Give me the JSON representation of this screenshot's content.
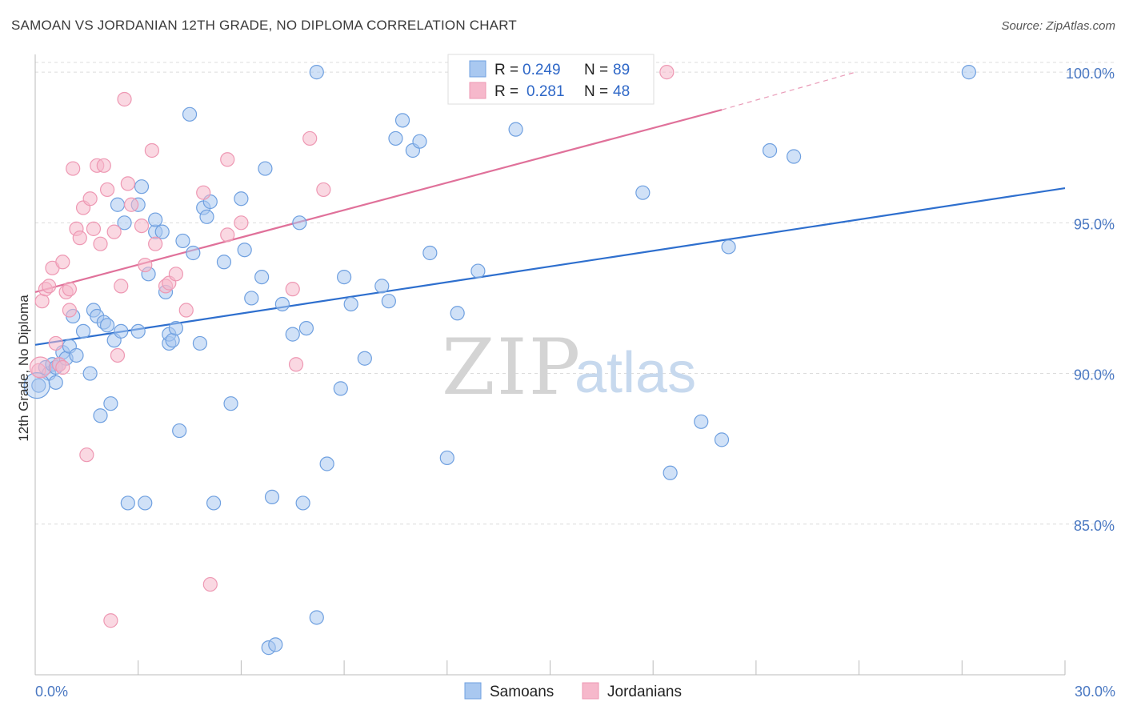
{
  "header": {
    "title": "SAMOAN VS JORDANIAN 12TH GRADE, NO DIPLOMA CORRELATION CHART",
    "source": "Source: ZipAtlas.com"
  },
  "watermark": {
    "zip": "ZIP",
    "atlas": "atlas"
  },
  "legend": {
    "r_label": "R =",
    "n_label": "N =",
    "rows": [
      {
        "r": "0.249",
        "n": "89",
        "color": "#a9c8f0"
      },
      {
        "r": "0.281",
        "n": "48",
        "color": "#f6b8cb"
      }
    ]
  },
  "bottom_legend": [
    "Samoans",
    "Jordanians"
  ],
  "chart_data": {
    "type": "scatter",
    "ylabel": "12th Grade, No Diploma",
    "xlabel": "",
    "xlim": [
      0,
      30
    ],
    "ylim": [
      80.0,
      100.8
    ],
    "x_tick_labels": [
      "0.0%",
      "30.0%"
    ],
    "y_ticks": [
      85,
      90,
      95,
      100
    ],
    "y_tick_labels": [
      "85.0%",
      "90.0%",
      "95.0%",
      "100.0%"
    ],
    "grid": "horizontal dashed",
    "legend_position": "top-center",
    "series": [
      {
        "name": "Samoans",
        "color": "#6fa0e0",
        "fill": "#a9c8f0",
        "line_color": "#2e6fce",
        "trend": {
          "x": [
            0,
            30
          ],
          "y": [
            90.95,
            96.15
          ]
        },
        "points": [
          [
            0.1,
            89.6
          ],
          [
            0.3,
            90.2
          ],
          [
            0.4,
            90.0
          ],
          [
            0.5,
            90.3
          ],
          [
            0.6,
            90.2
          ],
          [
            0.6,
            89.7
          ],
          [
            0.7,
            90.3
          ],
          [
            0.8,
            90.7
          ],
          [
            0.9,
            90.5
          ],
          [
            1.0,
            90.9
          ],
          [
            1.1,
            91.9
          ],
          [
            1.2,
            90.6
          ],
          [
            1.4,
            91.4
          ],
          [
            1.6,
            90.0
          ],
          [
            1.7,
            92.1
          ],
          [
            1.8,
            91.9
          ],
          [
            1.9,
            88.6
          ],
          [
            2.0,
            91.7
          ],
          [
            2.1,
            91.6
          ],
          [
            2.2,
            89.0
          ],
          [
            2.3,
            91.1
          ],
          [
            2.4,
            95.6
          ],
          [
            2.5,
            91.4
          ],
          [
            2.6,
            95.0
          ],
          [
            2.7,
            85.7
          ],
          [
            3.0,
            95.6
          ],
          [
            3.0,
            91.4
          ],
          [
            3.1,
            96.2
          ],
          [
            3.2,
            85.7
          ],
          [
            3.3,
            93.3
          ],
          [
            3.5,
            94.7
          ],
          [
            3.5,
            95.1
          ],
          [
            3.7,
            94.7
          ],
          [
            3.8,
            92.7
          ],
          [
            3.9,
            91.0
          ],
          [
            3.9,
            91.3
          ],
          [
            4.0,
            91.1
          ],
          [
            4.1,
            91.5
          ],
          [
            4.2,
            88.1
          ],
          [
            4.3,
            94.4
          ],
          [
            4.5,
            98.6
          ],
          [
            4.6,
            94.0
          ],
          [
            4.8,
            91.0
          ],
          [
            4.9,
            95.5
          ],
          [
            5.0,
            95.2
          ],
          [
            5.1,
            95.7
          ],
          [
            5.2,
            85.7
          ],
          [
            5.5,
            93.7
          ],
          [
            5.7,
            89.0
          ],
          [
            6.0,
            95.8
          ],
          [
            6.1,
            94.1
          ],
          [
            6.3,
            92.5
          ],
          [
            6.6,
            93.2
          ],
          [
            6.7,
            96.8
          ],
          [
            6.8,
            80.9
          ],
          [
            6.9,
            85.9
          ],
          [
            7.0,
            81.0
          ],
          [
            7.2,
            92.3
          ],
          [
            7.5,
            91.3
          ],
          [
            7.7,
            95.0
          ],
          [
            7.8,
            85.7
          ],
          [
            7.9,
            91.5
          ],
          [
            8.2,
            81.9
          ],
          [
            8.2,
            100.0
          ],
          [
            8.5,
            87.0
          ],
          [
            8.9,
            89.5
          ],
          [
            9.0,
            93.2
          ],
          [
            9.2,
            92.3
          ],
          [
            9.6,
            90.5
          ],
          [
            10.1,
            92.9
          ],
          [
            10.3,
            92.4
          ],
          [
            10.5,
            97.8
          ],
          [
            10.7,
            98.4
          ],
          [
            11.0,
            97.4
          ],
          [
            11.2,
            97.7
          ],
          [
            11.5,
            94.0
          ],
          [
            12.0,
            87.2
          ],
          [
            12.3,
            92.0
          ],
          [
            12.9,
            93.4
          ],
          [
            14.0,
            98.1
          ],
          [
            14.6,
            100.1
          ],
          [
            17.7,
            96.0
          ],
          [
            18.5,
            86.7
          ],
          [
            19.4,
            88.4
          ],
          [
            20.0,
            87.8
          ],
          [
            20.2,
            94.2
          ],
          [
            21.4,
            97.4
          ],
          [
            22.1,
            97.2
          ],
          [
            27.2,
            100.0
          ]
        ]
      },
      {
        "name": "Jordanians",
        "color": "#ee98b3",
        "fill": "#f6b8cb",
        "line_color": "#e0719a",
        "trend": {
          "x": [
            0,
            20.0,
            23.9
          ],
          "y": [
            92.7,
            98.75,
            100.0
          ]
        },
        "points": [
          [
            0.1,
            90.1
          ],
          [
            0.2,
            92.4
          ],
          [
            0.3,
            92.8
          ],
          [
            0.4,
            92.9
          ],
          [
            0.5,
            93.5
          ],
          [
            0.6,
            91.0
          ],
          [
            0.7,
            90.3
          ],
          [
            0.8,
            90.2
          ],
          [
            0.8,
            93.7
          ],
          [
            0.9,
            92.7
          ],
          [
            1.0,
            92.1
          ],
          [
            1.0,
            92.8
          ],
          [
            1.1,
            96.8
          ],
          [
            1.2,
            94.8
          ],
          [
            1.3,
            94.5
          ],
          [
            1.4,
            95.5
          ],
          [
            1.5,
            87.3
          ],
          [
            1.6,
            95.8
          ],
          [
            1.7,
            94.8
          ],
          [
            1.8,
            96.9
          ],
          [
            1.9,
            94.3
          ],
          [
            2.0,
            96.9
          ],
          [
            2.1,
            96.1
          ],
          [
            2.2,
            81.8
          ],
          [
            2.3,
            94.7
          ],
          [
            2.4,
            90.6
          ],
          [
            2.5,
            92.9
          ],
          [
            2.6,
            99.1
          ],
          [
            2.7,
            96.3
          ],
          [
            2.8,
            95.6
          ],
          [
            3.1,
            94.9
          ],
          [
            3.2,
            93.6
          ],
          [
            3.4,
            97.4
          ],
          [
            3.5,
            94.3
          ],
          [
            3.8,
            92.9
          ],
          [
            3.9,
            93.0
          ],
          [
            4.1,
            93.3
          ],
          [
            4.4,
            92.1
          ],
          [
            4.9,
            96.0
          ],
          [
            5.1,
            83.0
          ],
          [
            5.6,
            97.1
          ],
          [
            5.6,
            94.6
          ],
          [
            6.0,
            95.0
          ],
          [
            7.5,
            92.8
          ],
          [
            7.6,
            90.3
          ],
          [
            8.0,
            97.8
          ],
          [
            8.4,
            96.1
          ],
          [
            18.4,
            100.0
          ]
        ]
      }
    ]
  }
}
